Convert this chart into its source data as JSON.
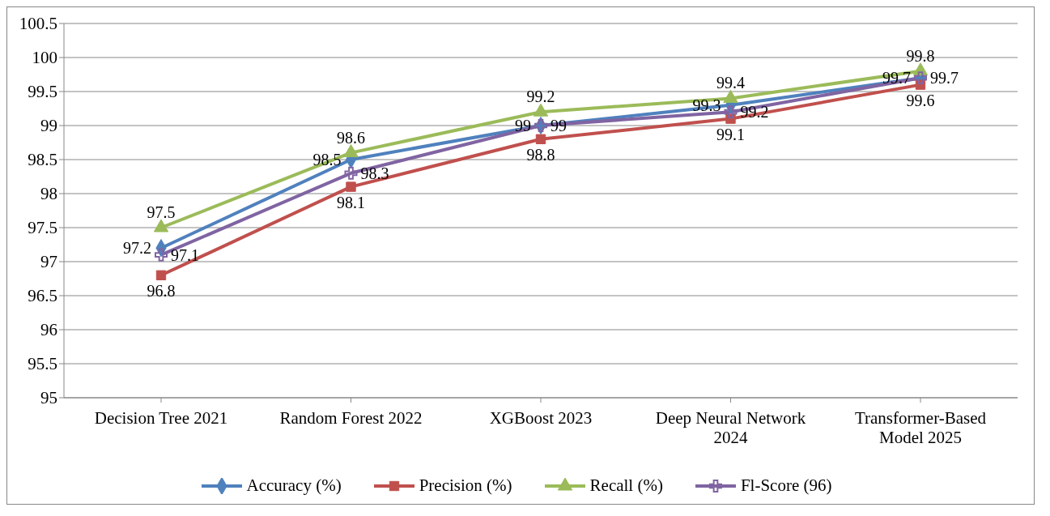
{
  "chart_data": {
    "type": "line",
    "categories": [
      "Decision Tree 2021",
      "Random Forest  2022",
      "XGBoost 2023",
      "Deep Neural Network 2024",
      "Transformer-Based Model 2025"
    ],
    "series": [
      {
        "name": "Accuracy (%)",
        "color": "#4f81bd",
        "marker": "diamond",
        "values": [
          97.2,
          98.5,
          99.0,
          99.3,
          99.7
        ]
      },
      {
        "name": "Precision (%)",
        "color": "#c0504d",
        "marker": "square",
        "values": [
          96.8,
          98.1,
          98.8,
          99.1,
          99.6
        ]
      },
      {
        "name": "Recall (%)",
        "color": "#9bbb59",
        "marker": "triangle",
        "values": [
          97.5,
          98.6,
          99.2,
          99.4,
          99.8
        ]
      },
      {
        "name": "Fl-Score (96)",
        "color": "#8064a2",
        "marker": "cross",
        "values": [
          97.1,
          98.3,
          99.0,
          99.2,
          99.7
        ]
      }
    ],
    "ylim": [
      95,
      100.5
    ],
    "yticks": [
      95,
      95.5,
      96,
      96.5,
      97,
      97.5,
      98,
      98.5,
      99,
      99.5,
      100,
      100.5
    ],
    "grid": "y",
    "legend": "bottom",
    "data_labels": true
  }
}
